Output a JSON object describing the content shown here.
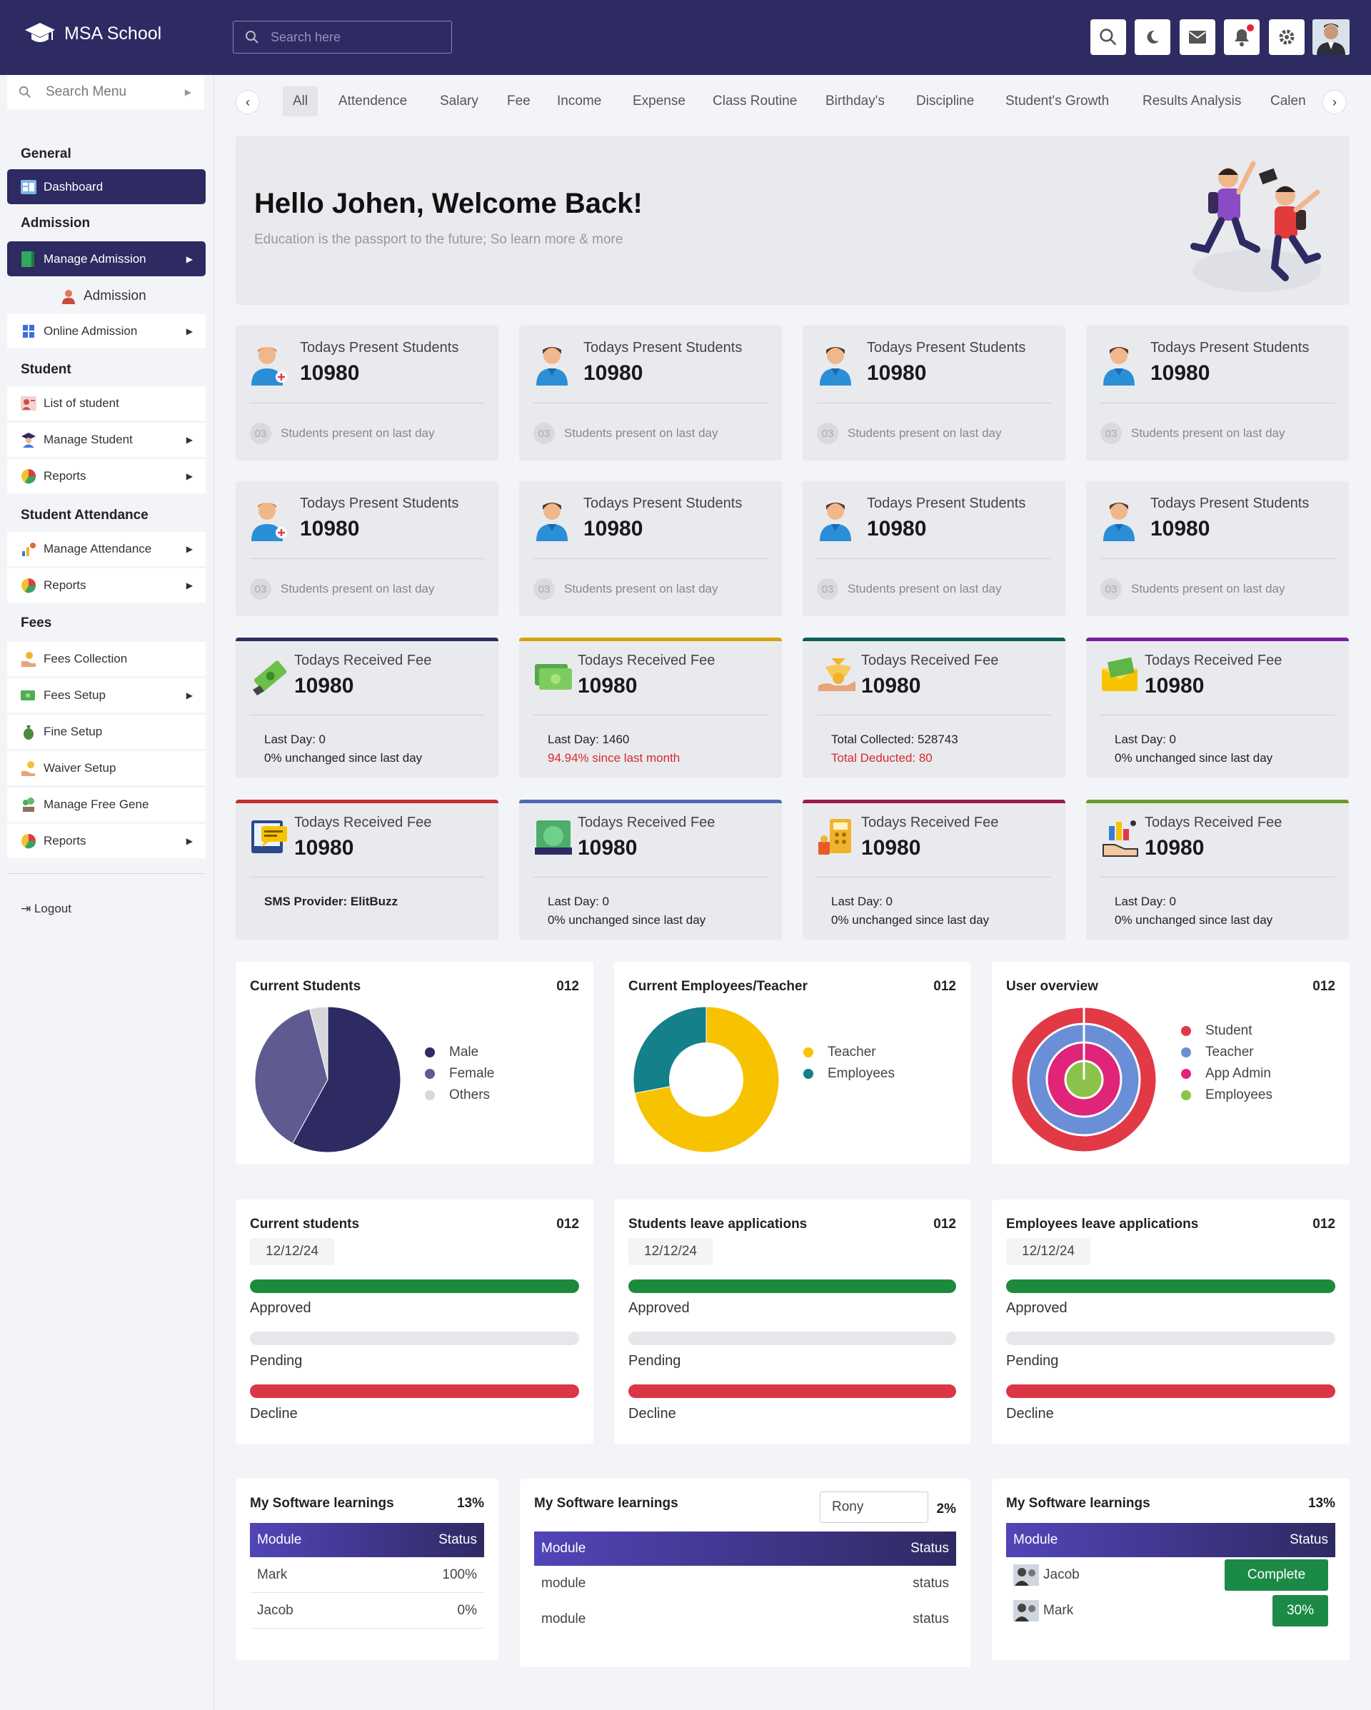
{
  "app": {
    "title": "MSA School"
  },
  "header": {
    "search_placeholder": "Search here"
  },
  "sidebar": {
    "search_label": "Search Menu",
    "sections": {
      "general": "General",
      "admission": "Admission",
      "student": "Student",
      "attendance": "Student Attendance",
      "fees": "Fees"
    },
    "items": {
      "dashboard": "Dashboard",
      "manage_admission": "Manage Admission",
      "admission": "Admission",
      "online_admission": "Online Admission",
      "list_student": "List of student",
      "manage_student": "Manage Student",
      "reports1": "Reports",
      "manage_attendance": "Manage Attendance",
      "reports2": "Reports",
      "fees_collection": "Fees Collection",
      "fees_setup": "Fees Setup",
      "fine_setup": "Fine Setup",
      "waiver_setup": "Waiver Setup",
      "manage_free_gene": "Manage Free Gene",
      "reports3": "Reports"
    },
    "logout": "Logout"
  },
  "tabs": [
    "All",
    "Attendence",
    "Salary",
    "Fee",
    "Income",
    "Expense",
    "Class Routine",
    "Birthday's",
    "Discipline",
    "Student's Growth",
    "Results Analysis",
    "Calen"
  ],
  "hero": {
    "title": "Hello Johen, Welcome Back!",
    "subtitle": "Education is the passport to the future; So learn more & more"
  },
  "present_cards": {
    "label": "Todays Present Students",
    "value": "10980",
    "badge": "03",
    "foot": "Students present on last day"
  },
  "fee_cards": [
    {
      "label": "Todays Received Fee",
      "value": "10980",
      "l1": "Last Day: 0",
      "l2": "0% unchanged since last day",
      "accent": "#2e2a62"
    },
    {
      "label": "Todays Received Fee",
      "value": "10980",
      "l1": "Last Day: 1460",
      "l2": "94.94% since last month",
      "accent": "#d4a20a"
    },
    {
      "label": "Todays Received Fee",
      "value": "10980",
      "l1": "Total Collected: 528743",
      "l2": "Total Deducted: 80",
      "accent": "#0d5d5a"
    },
    {
      "label": "Todays Received Fee",
      "value": "10980",
      "l1": "Last Day: 0",
      "l2": "0% unchanged since last day",
      "accent": "#7a1fa2"
    },
    {
      "label": "Todays Received Fee",
      "value": "10980",
      "l1": "SMS Provider: ElitBuzz",
      "l2": "",
      "accent": "#c62d2d"
    },
    {
      "label": "Todays Received Fee",
      "value": "10980",
      "l1": "Last Day: 0",
      "l2": "0% unchanged since last day",
      "accent": "#4e6bb0"
    },
    {
      "label": "Todays Received Fee",
      "value": "10980",
      "l1": "Last Day: 0",
      "l2": "0% unchanged since last day",
      "accent": "#9c1b4a"
    },
    {
      "label": "Todays Received Fee",
      "value": "10980",
      "l1": "Last Day: 0",
      "l2": "0% unchanged since last day",
      "accent": "#6c9a2e"
    }
  ],
  "charts": {
    "current_students": {
      "title": "Current Students",
      "num": "012",
      "legend": [
        "Male",
        "Female",
        "Others"
      ]
    },
    "employees": {
      "title": "Current Employees/Teacher",
      "num": "012",
      "legend": [
        "Teacher",
        "Employees"
      ]
    },
    "user_overview": {
      "title": "User overview",
      "num": "012",
      "legend": [
        "Student",
        "Teacher",
        "App Admin",
        "Employees"
      ]
    }
  },
  "chart_data": [
    {
      "type": "pie",
      "series": [
        {
          "values": [
            58,
            38,
            4
          ]
        }
      ],
      "categories": [
        "Male",
        "Female",
        "Others"
      ],
      "colors": [
        "#2e2a62",
        "#5f5a8f",
        "#d8d8dc"
      ]
    },
    {
      "type": "pie",
      "donut": true,
      "series": [
        {
          "values": [
            72,
            28
          ]
        }
      ],
      "categories": [
        "Teacher",
        "Employees"
      ],
      "colors": [
        "#f7c300",
        "#13808a"
      ]
    },
    {
      "type": "pie",
      "rings": true,
      "categories": [
        "Student",
        "Teacher",
        "App Admin",
        "Employees"
      ],
      "colors": [
        "#e23947",
        "#6b8fd6",
        "#e0247a",
        "#8bc34a"
      ]
    }
  ],
  "leave": [
    {
      "title": "Current students",
      "num": "012",
      "date": "12/12/24",
      "approved": "Approved",
      "pending": "Pending",
      "decline": "Decline"
    },
    {
      "title": "Students leave applications",
      "num": "012",
      "date": "12/12/24",
      "approved": "Approved",
      "pending": "Pending",
      "decline": "Decline"
    },
    {
      "title": "Employees leave applications",
      "num": "012",
      "date": "12/12/24",
      "approved": "Approved",
      "pending": "Pending",
      "decline": "Decline"
    }
  ],
  "learn1": {
    "title": "My Software learnings",
    "pct": "13%",
    "h1": "Module",
    "h2": "Status",
    "rows": [
      [
        "Mark",
        "100%"
      ],
      [
        "Jacob",
        "0%"
      ]
    ]
  },
  "learn2": {
    "title": "My Software learnings",
    "select": "Rony",
    "pct": "2%",
    "h1": "Module",
    "h2": "Status",
    "rows": [
      [
        "module",
        "status"
      ],
      [
        "module",
        "status"
      ]
    ]
  },
  "learn3": {
    "title": "My Software learnings",
    "pct": "13%",
    "h1": "Module",
    "h2": "Status",
    "rows": [
      [
        "Jacob",
        "Complete"
      ],
      [
        "Mark",
        "30%"
      ]
    ]
  },
  "colors": {
    "primary": "#2e2a62",
    "approved": "#1c8a3a",
    "pending": "#e6e7eb",
    "decline": "#dc3545",
    "negative": "#d62b2b"
  }
}
